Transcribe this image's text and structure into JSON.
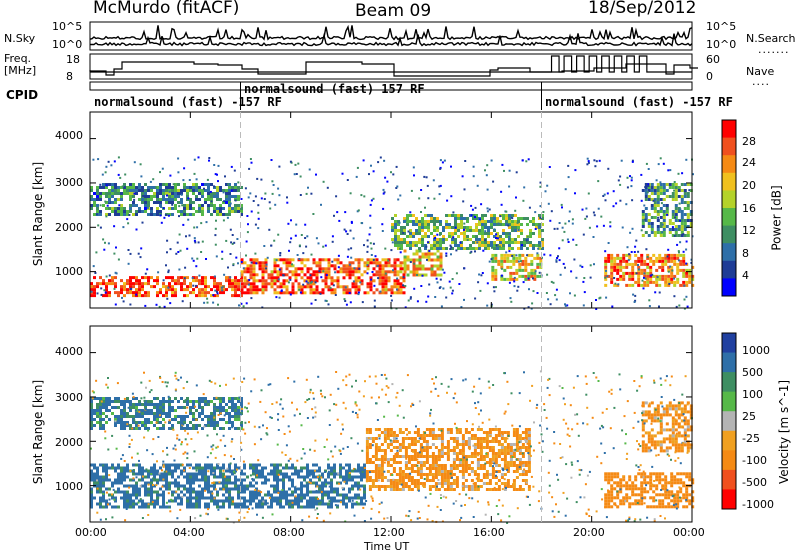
{
  "header": {
    "station": "McMurdo (fitACF)",
    "beam": "Beam 09",
    "date": "18/Sep/2012"
  },
  "top_panels": {
    "nsky_label": "N.Sky",
    "nsky_ticks": [
      "10^5",
      "10^0"
    ],
    "nsearch_label": "N.Search",
    "nsearch_ticks": [
      "10^5",
      "10^0"
    ],
    "freq_label_1": "Freq.",
    "freq_label_2": "[MHz]",
    "freq_ticks": [
      "18",
      "8"
    ],
    "nave_label": "Nave",
    "nave_ticks": [
      "60",
      "0"
    ],
    "cpid_label": "CPID",
    "cpid_segments": [
      {
        "text": "normalsound (fast) -157 RF",
        "start_hour": 0
      },
      {
        "text": "normalsound (fast) 157 RF",
        "start_hour": 6
      },
      {
        "text": "normalsound (fast) -157 RF",
        "start_hour": 18
      }
    ]
  },
  "chart_data": [
    {
      "type": "heatmap",
      "panel": "power",
      "xlabel": "",
      "ylabel": "Slant Range [km]",
      "xlim": [
        0,
        24
      ],
      "ylim": [
        180,
        4600
      ],
      "yticks": [
        "1000",
        "2000",
        "3000",
        "4000"
      ],
      "colorbar_label": "Power [dB]",
      "colorbar_ticks": [
        "4",
        "8",
        "12",
        "16",
        "20",
        "24",
        "28"
      ],
      "colorbar_range": [
        0,
        32
      ],
      "colors": [
        "#0000ff",
        "#1e3c96",
        "#2e6fa8",
        "#3e8e62",
        "#56b848",
        "#b4d22a",
        "#f0c01e",
        "#f58a14",
        "#f0501e",
        "#ff0000"
      ],
      "echo_regions": [
        {
          "hours": [
            0,
            24
          ],
          "range_km": [
            450,
            1400
          ],
          "power_db": 22,
          "description_bands": [
            {
              "x0": 0.0,
              "x1": 6.0,
              "y0": 450,
              "y1": 900,
              "power": 28
            },
            {
              "x0": 6.0,
              "x1": 12.5,
              "y0": 500,
              "y1": 1300,
              "power": 26
            },
            {
              "x0": 12.5,
              "x1": 14.0,
              "y0": 900,
              "y1": 1500,
              "power": 22
            },
            {
              "x0": 16.0,
              "x1": 18.0,
              "y0": 800,
              "y1": 1400,
              "power": 20
            },
            {
              "x0": 20.5,
              "x1": 24.0,
              "y0": 700,
              "y1": 1400,
              "power": 24
            }
          ]
        },
        {
          "hours": [
            0,
            6
          ],
          "range_km": [
            2300,
            3000
          ],
          "power_db": 10
        },
        {
          "hours": [
            12,
            18
          ],
          "range_km": [
            1500,
            2300
          ],
          "power_db": 14
        },
        {
          "hours": [
            22,
            24
          ],
          "range_km": [
            1800,
            3000
          ],
          "power_db": 12
        }
      ]
    },
    {
      "type": "heatmap",
      "panel": "velocity",
      "xlabel": "Time UT",
      "ylabel": "Slant Range [km]",
      "xlim": [
        0,
        24
      ],
      "ylim": [
        180,
        4600
      ],
      "xticks": [
        "00:00",
        "04:00",
        "08:00",
        "12:00",
        "16:00",
        "20:00",
        "00:00"
      ],
      "yticks": [
        "1000",
        "2000",
        "3000",
        "4000"
      ],
      "colorbar_label": "Velocity [m s^-1]",
      "colorbar_ticks": [
        "1000",
        "500",
        "100",
        "25",
        "-25",
        "-100",
        "-500",
        "-1000"
      ],
      "colors": [
        "#2040a0",
        "#2e6fa8",
        "#3e8e62",
        "#56b848",
        "#b4b4b4",
        "#f0a020",
        "#f58a14",
        "#f0501e",
        "#ff0000"
      ],
      "echo_regions": [
        {
          "hours": [
            0,
            11
          ],
          "range_km": [
            500,
            1500
          ],
          "velocity": 200
        },
        {
          "hours": [
            11,
            17.5
          ],
          "range_km": [
            900,
            2300
          ],
          "velocity": -150
        },
        {
          "hours": [
            20.5,
            24
          ],
          "range_km": [
            500,
            1300
          ],
          "velocity": -300
        },
        {
          "hours": [
            22,
            24
          ],
          "range_km": [
            1800,
            2900
          ],
          "velocity": -150
        },
        {
          "hours": [
            0,
            6
          ],
          "range_km": [
            2300,
            3000
          ],
          "velocity": 150
        }
      ]
    }
  ]
}
